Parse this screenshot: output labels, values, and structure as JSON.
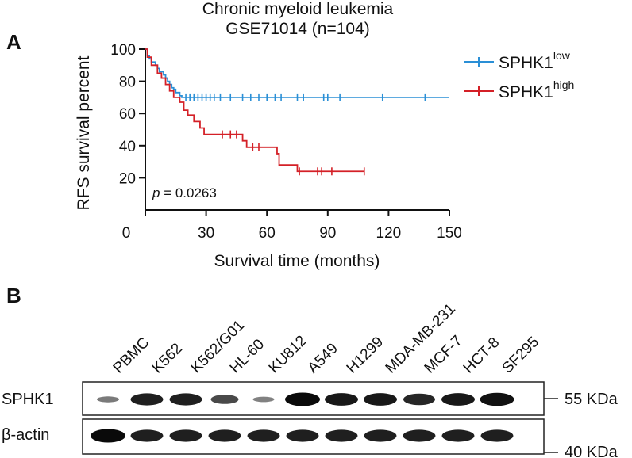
{
  "panel_a_label": "A",
  "panel_b_label": "B",
  "chart_data": [
    {
      "type": "line",
      "subtype": "kaplan-meier",
      "title": "Chronic myeloid leukemia",
      "subtitle": "GSE71014 (n=104)",
      "xlabel": "Survival time (months)",
      "ylabel": "RFS survival percent",
      "xlim": [
        0,
        150
      ],
      "ylim": [
        0,
        100
      ],
      "xticks": [
        0,
        30,
        60,
        90,
        120,
        150
      ],
      "yticks": [
        20,
        40,
        60,
        80,
        100
      ],
      "x_tick_labels": [
        "0",
        "30",
        "60",
        "90",
        "120",
        "150"
      ],
      "y_tick_labels": [
        "20",
        "40",
        "60",
        "80",
        "100"
      ],
      "legend_position": "top-right",
      "annotation": {
        "italic": "p",
        "text": " = 0.0263"
      },
      "series": [
        {
          "name": "SPHK1",
          "name_sup": "low",
          "color": "#2a8fd6",
          "steps": [
            [
              0,
              100
            ],
            [
              1,
              96
            ],
            [
              2,
              94
            ],
            [
              3,
              92
            ],
            [
              5,
              90
            ],
            [
              6,
              88
            ],
            [
              7,
              86
            ],
            [
              9,
              84
            ],
            [
              10,
              82
            ],
            [
              11,
              80
            ],
            [
              12,
              78
            ],
            [
              13,
              76
            ],
            [
              14,
              75
            ],
            [
              15,
              73
            ],
            [
              17,
              71
            ],
            [
              18,
              70
            ],
            [
              150,
              70
            ]
          ],
          "censor": [
            20,
            22,
            24,
            26,
            28,
            30,
            32,
            34,
            37,
            42,
            48,
            52,
            56,
            60,
            64,
            67,
            75,
            78,
            88,
            90,
            96,
            117,
            138
          ]
        },
        {
          "name": "SPHK1",
          "name_sup": "high",
          "color": "#d42027",
          "steps": [
            [
              0,
              100
            ],
            [
              1,
              95
            ],
            [
              3,
              90
            ],
            [
              6,
              85
            ],
            [
              8,
              82
            ],
            [
              10,
              78
            ],
            [
              12,
              74
            ],
            [
              14,
              70
            ],
            [
              17,
              67
            ],
            [
              19,
              62
            ],
            [
              21,
              59
            ],
            [
              24,
              55
            ],
            [
              27,
              51
            ],
            [
              29,
              47
            ],
            [
              48,
              43
            ],
            [
              50,
              39
            ],
            [
              65,
              35
            ],
            [
              66,
              28
            ],
            [
              75,
              24
            ],
            [
              108,
              24
            ]
          ],
          "censor": [
            38,
            42,
            45,
            53,
            56,
            76,
            85,
            87,
            92,
            108
          ]
        }
      ]
    },
    {
      "type": "western-blot",
      "lanes": [
        "PBMC",
        "K562",
        "K562/G01",
        "HL-60",
        "KU812",
        "A549",
        "H1299",
        "MDA-MB-231",
        "MCF-7",
        "HCT-8",
        "SF295"
      ],
      "rows": [
        {
          "label": "SPHK1",
          "mw_label": "55 KDa",
          "intensity": [
            0.2,
            0.85,
            0.85,
            0.55,
            0.15,
            1.0,
            0.9,
            0.9,
            0.8,
            0.9,
            0.95
          ]
        },
        {
          "label": "β-actin",
          "mw_label": "40 KDa",
          "intensity": [
            1.0,
            0.85,
            0.85,
            0.85,
            0.85,
            0.85,
            0.85,
            0.85,
            0.85,
            0.85,
            0.85
          ]
        }
      ]
    }
  ]
}
